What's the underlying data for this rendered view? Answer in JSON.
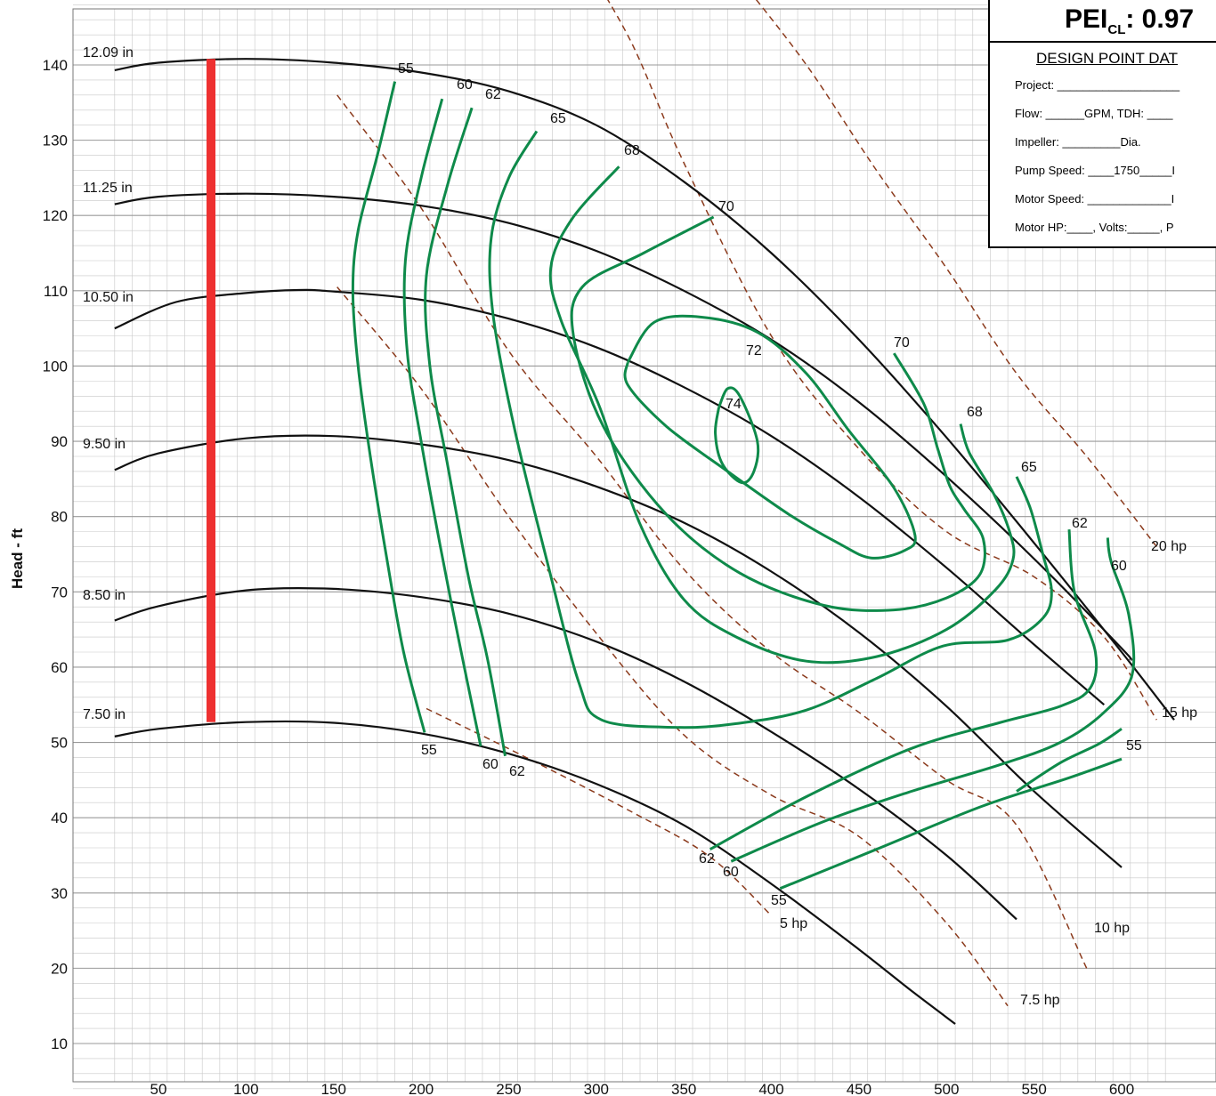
{
  "chart_data": {
    "type": "line",
    "title": "",
    "xlabel": "",
    "ylabel": "Head - ft",
    "xlim": [
      25,
      630
    ],
    "ylim": [
      3,
      149
    ],
    "xticks": [
      50,
      100,
      150,
      200,
      250,
      300,
      350,
      400,
      450,
      500,
      550,
      600
    ],
    "yticks": [
      10,
      20,
      30,
      40,
      50,
      60,
      70,
      80,
      90,
      100,
      110,
      120,
      130,
      140
    ],
    "grid": true,
    "impeller_curves": [
      {
        "name": "12.09 in",
        "points": [
          [
            25,
            139.3
          ],
          [
            50,
            140.3
          ],
          [
            100,
            140.8
          ],
          [
            150,
            140.3
          ],
          [
            200,
            139
          ],
          [
            250,
            136.5
          ],
          [
            300,
            132
          ],
          [
            350,
            124.5
          ],
          [
            400,
            115
          ],
          [
            450,
            103.5
          ],
          [
            500,
            90.5
          ],
          [
            550,
            76.5
          ],
          [
            600,
            62
          ],
          [
            630,
            53
          ]
        ]
      },
      {
        "name": "11.25 in",
        "points": [
          [
            25,
            121.5
          ],
          [
            50,
            122.5
          ],
          [
            100,
            122.9
          ],
          [
            150,
            122.5
          ],
          [
            200,
            121.3
          ],
          [
            250,
            119
          ],
          [
            300,
            115.3
          ],
          [
            350,
            110
          ],
          [
            400,
            103.5
          ],
          [
            450,
            95.2
          ],
          [
            500,
            85.3
          ],
          [
            550,
            74.4
          ],
          [
            600,
            62.5
          ],
          [
            605,
            61
          ]
        ]
      },
      {
        "name": "10.50 in",
        "points": [
          [
            25,
            105
          ],
          [
            60,
            108.5
          ],
          [
            100,
            109.7
          ],
          [
            130,
            110.1
          ],
          [
            150,
            109.9
          ],
          [
            200,
            108.8
          ],
          [
            250,
            106.3
          ],
          [
            300,
            102.5
          ],
          [
            350,
            97.2
          ],
          [
            400,
            90.7
          ],
          [
            450,
            82.6
          ],
          [
            500,
            73.2
          ],
          [
            550,
            63
          ],
          [
            590,
            55
          ]
        ]
      },
      {
        "name": "9.50 in",
        "points": [
          [
            25,
            86.2
          ],
          [
            50,
            88.4
          ],
          [
            100,
            90.4
          ],
          [
            150,
            90.7
          ],
          [
            200,
            89.6
          ],
          [
            250,
            87.5
          ],
          [
            300,
            84
          ],
          [
            350,
            79.2
          ],
          [
            400,
            72.7
          ],
          [
            450,
            64.6
          ],
          [
            500,
            54.8
          ],
          [
            550,
            43.5
          ],
          [
            600,
            33.4
          ]
        ]
      },
      {
        "name": "8.50 in",
        "points": [
          [
            25,
            66.2
          ],
          [
            50,
            68.1
          ],
          [
            100,
            70.2
          ],
          [
            150,
            70.4
          ],
          [
            200,
            69.3
          ],
          [
            250,
            67.1
          ],
          [
            300,
            63.4
          ],
          [
            350,
            58.1
          ],
          [
            400,
            51.4
          ],
          [
            450,
            43.8
          ],
          [
            500,
            35
          ],
          [
            540,
            26.5
          ]
        ]
      },
      {
        "name": "7.50 in",
        "points": [
          [
            25,
            50.8
          ],
          [
            50,
            51.8
          ],
          [
            100,
            52.7
          ],
          [
            150,
            52.6
          ],
          [
            200,
            51.2
          ],
          [
            250,
            48.5
          ],
          [
            300,
            44.5
          ],
          [
            350,
            39
          ],
          [
            400,
            31.2
          ],
          [
            450,
            22.5
          ],
          [
            480,
            17
          ],
          [
            505,
            12.6
          ]
        ]
      }
    ],
    "impeller_labels": [
      "12.09 in",
      "11.25 in",
      "10.50 in",
      "9.50 in",
      "8.50 in",
      "7.50 in"
    ],
    "efficiency_contours": [
      {
        "name": "55",
        "points": [
          [
            185,
            137.8
          ],
          [
            175,
            128
          ],
          [
            164,
            118
          ],
          [
            161,
            110
          ],
          [
            164,
            100
          ],
          [
            171,
            88
          ],
          [
            180,
            75
          ],
          [
            190,
            62
          ],
          [
            202,
            51.3
          ]
        ]
      },
      {
        "name": "55",
        "points": [
          [
            405,
            30.6
          ],
          [
            460,
            35.8
          ],
          [
            520,
            41.5
          ],
          [
            570,
            45.3
          ],
          [
            600,
            47.8
          ]
        ]
      },
      {
        "name": "55",
        "points": [
          [
            600,
            51.8
          ],
          [
            587,
            49.8
          ],
          [
            565,
            47.3
          ],
          [
            540,
            43.5
          ]
        ]
      },
      {
        "name": "60",
        "points": [
          [
            212,
            135.5
          ],
          [
            200,
            125
          ],
          [
            191,
            114
          ],
          [
            192,
            102
          ],
          [
            200,
            90
          ],
          [
            211,
            76
          ],
          [
            222,
            63
          ],
          [
            234,
            49.5
          ]
        ]
      },
      {
        "name": "60",
        "points": [
          [
            377,
            34.2
          ],
          [
            430,
            39.5
          ],
          [
            480,
            43.5
          ],
          [
            530,
            47
          ],
          [
            565,
            50
          ],
          [
            590,
            54
          ],
          [
            606,
            59
          ],
          [
            604,
            67
          ],
          [
            594,
            74
          ],
          [
            592,
            77.2
          ]
        ]
      },
      {
        "name": "62",
        "points": [
          [
            229,
            134.3
          ],
          [
            215,
            124
          ],
          [
            203,
            112
          ],
          [
            205,
            100
          ],
          [
            215,
            87
          ],
          [
            227,
            72
          ],
          [
            238,
            61
          ],
          [
            248,
            48.2
          ]
        ]
      },
      {
        "name": "62",
        "points": [
          [
            365,
            35.8
          ],
          [
            420,
            42.8
          ],
          [
            480,
            49.2
          ],
          [
            530,
            52.6
          ],
          [
            565,
            54.8
          ],
          [
            582,
            57.2
          ],
          [
            585,
            62
          ],
          [
            573,
            70
          ],
          [
            570,
            78.3
          ]
        ]
      },
      {
        "name": "65",
        "points": [
          [
            266,
            131.2
          ],
          [
            250,
            125
          ],
          [
            240,
            117
          ],
          [
            241,
            107
          ],
          [
            253,
            92
          ],
          [
            272,
            74
          ],
          [
            290,
            58
          ],
          [
            303,
            53
          ],
          [
            345,
            52
          ],
          [
            380,
            52.5
          ],
          [
            420,
            54.3
          ],
          [
            460,
            58.5
          ],
          [
            498,
            62.8
          ],
          [
            535,
            63.6
          ],
          [
            555,
            66.5
          ],
          [
            560,
            70
          ],
          [
            555,
            75
          ],
          [
            548,
            81
          ],
          [
            540,
            85.3
          ]
        ]
      },
      {
        "name": "68",
        "points": [
          [
            313,
            126.5
          ],
          [
            286,
            119.5
          ],
          [
            274,
            113
          ],
          [
            280,
            106
          ],
          [
            302,
            94.5
          ],
          [
            325,
            79
          ],
          [
            350,
            69
          ],
          [
            380,
            64
          ],
          [
            420,
            60.8
          ],
          [
            460,
            61.4
          ],
          [
            500,
            65
          ],
          [
            528,
            70.3
          ],
          [
            538,
            74.3
          ],
          [
            536,
            78
          ],
          [
            527,
            83
          ],
          [
            513,
            88.5
          ],
          [
            508,
            92.3
          ]
        ]
      },
      {
        "name": "70",
        "points": [
          [
            367,
            119.8
          ],
          [
            327,
            115
          ],
          [
            292,
            110.5
          ],
          [
            287,
            104
          ],
          [
            304,
            92
          ],
          [
            340,
            80.3
          ],
          [
            382,
            72.5
          ],
          [
            430,
            68.2
          ],
          [
            470,
            67.6
          ],
          [
            500,
            69.2
          ],
          [
            519,
            72.3
          ],
          [
            521,
            77
          ],
          [
            510,
            81
          ],
          [
            502,
            84
          ],
          [
            495,
            89
          ],
          [
            487,
            95
          ],
          [
            470,
            101.7
          ]
        ]
      },
      {
        "name": "72",
        "points": [
          [
            318,
            100.5
          ],
          [
            333,
            105.8
          ],
          [
            360,
            106.5
          ],
          [
            392,
            104.5
          ],
          [
            420,
            99
          ],
          [
            444,
            91.5
          ],
          [
            470,
            83.8
          ],
          [
            482,
            77.5
          ],
          [
            476,
            75.5
          ],
          [
            457,
            74.5
          ],
          [
            438,
            76.5
          ],
          [
            410,
            80.3
          ],
          [
            375,
            86
          ],
          [
            340,
            92
          ],
          [
            318,
            97.5
          ],
          [
            318,
            100.5
          ]
        ]
      },
      {
        "name": "74",
        "points": [
          [
            370,
            94.5
          ],
          [
            375,
            97
          ],
          [
            382,
            96
          ],
          [
            392,
            90
          ],
          [
            390,
            86
          ],
          [
            383,
            84.5
          ],
          [
            372,
            87
          ],
          [
            368,
            91
          ],
          [
            370,
            94.5
          ]
        ]
      }
    ],
    "efficiency_labels": [
      {
        "text": "55"
      },
      {
        "text": "60"
      },
      {
        "text": "62"
      },
      {
        "text": "65"
      },
      {
        "text": "68"
      },
      {
        "text": "70"
      },
      {
        "text": "72"
      },
      {
        "text": "74"
      },
      {
        "text": "70"
      },
      {
        "text": "68"
      },
      {
        "text": "65"
      },
      {
        "text": "62"
      },
      {
        "text": "60"
      },
      {
        "text": "55"
      },
      {
        "text": "55"
      },
      {
        "text": "60"
      },
      {
        "text": "62"
      },
      {
        "text": "62"
      },
      {
        "text": "60"
      },
      {
        "text": "55"
      }
    ],
    "power_lines": [
      {
        "name": "5 hp",
        "points": [
          [
            203,
            54.5
          ],
          [
            260,
            48
          ],
          [
            320,
            40.8
          ],
          [
            365,
            34.8
          ],
          [
            400,
            27
          ]
        ]
      },
      {
        "name": "7.5 hp",
        "points": [
          [
            152,
            110.5
          ],
          [
            200,
            97
          ],
          [
            250,
            80
          ],
          [
            300,
            64.5
          ],
          [
            350,
            51
          ],
          [
            400,
            43
          ],
          [
            450,
            37.5
          ],
          [
            500,
            26
          ],
          [
            535,
            15
          ]
        ]
      },
      {
        "name": "10 hp",
        "points": [
          [
            152,
            136
          ],
          [
            200,
            121
          ],
          [
            250,
            102
          ],
          [
            300,
            88
          ],
          [
            350,
            73
          ],
          [
            400,
            62
          ],
          [
            450,
            54
          ],
          [
            500,
            45
          ],
          [
            540,
            39
          ],
          [
            580,
            20
          ]
        ]
      },
      {
        "name": "15 hp",
        "points": [
          [
            290,
            155
          ],
          [
            320,
            143
          ],
          [
            350,
            127
          ],
          [
            400,
            104
          ],
          [
            450,
            89
          ],
          [
            500,
            78
          ],
          [
            550,
            72
          ],
          [
            590,
            64
          ],
          [
            620,
            53
          ]
        ]
      },
      {
        "name": "20 hp",
        "points": [
          [
            380,
            152
          ],
          [
            420,
            140
          ],
          [
            460,
            126
          ],
          [
            500,
            113
          ],
          [
            540,
            99
          ],
          [
            580,
            88
          ],
          [
            620,
            76
          ]
        ]
      }
    ],
    "highlight": {
      "name": "operating range",
      "x": 80,
      "y_from": 52.7,
      "y_to": 140.8,
      "color": "#ee3030"
    },
    "colors": {
      "impeller": "#111111",
      "efficiency": "#0e8a4a",
      "power": "#8b3a1c",
      "grid": "#c8c8c8",
      "highlight": "#ee3030"
    }
  },
  "design_box": {
    "pei_label": "PEI",
    "pei_sub": "CL",
    "pei_value": ": 0.97",
    "title": "DESIGN POINT DAT",
    "rows": [
      "Project: ___________________",
      "Flow: ______GPM, TDH: ____",
      "Impeller: _________Dia.",
      "Pump Speed: ____1750_____I",
      "Motor Speed: _____________I",
      "Motor HP:____, Volts:_____, P"
    ]
  }
}
